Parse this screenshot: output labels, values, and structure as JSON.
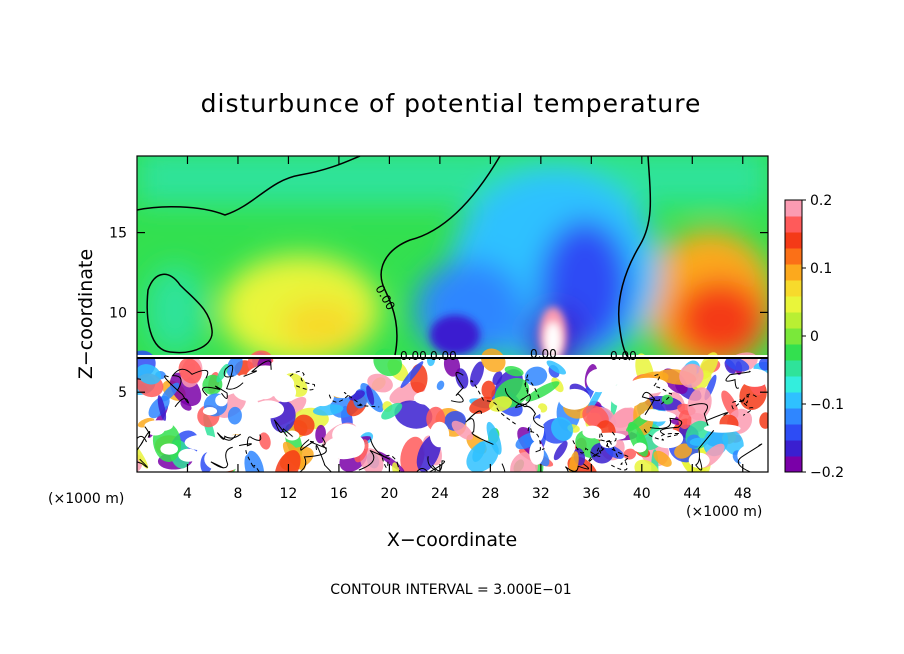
{
  "chart_data": {
    "type": "heatmap",
    "title": "disturbunce of potential temperature",
    "xlabel": "X−coordinate",
    "ylabel": "Z−coordinate",
    "x_unit": "(×1000 m)",
    "y_unit": "(×1000 m)",
    "xlim": [
      0,
      50
    ],
    "ylim": [
      0,
      19.8
    ],
    "x_ticks": [
      4,
      8,
      12,
      16,
      20,
      24,
      28,
      32,
      36,
      40,
      44,
      48
    ],
    "y_ticks": [
      5,
      10,
      15
    ],
    "colorbar": {
      "range": [
        -0.2,
        0.2
      ],
      "tick_values": [
        0.2,
        0.1,
        0,
        -0.1,
        -0.2
      ],
      "tick_labels": [
        "0.2",
        "0.1",
        "0",
        "−0.1",
        "−0.2"
      ],
      "colors": [
        "#7a00a8",
        "#3a1fd0",
        "#2d4cf5",
        "#2f86ff",
        "#2fc1ff",
        "#33eedd",
        "#2fe39a",
        "#33e04f",
        "#7ae83a",
        "#b9ef33",
        "#e9f53a",
        "#f7da2c",
        "#fca91d",
        "#fb7017",
        "#f43a17",
        "#ff5a5a",
        "#fb9bb2"
      ]
    },
    "contour_labels": [
      "0.00",
      "0.00",
      "0.00",
      "0.00",
      "0.00"
    ],
    "note": "CONTOUR INTERVAL = 3.000E−01"
  }
}
